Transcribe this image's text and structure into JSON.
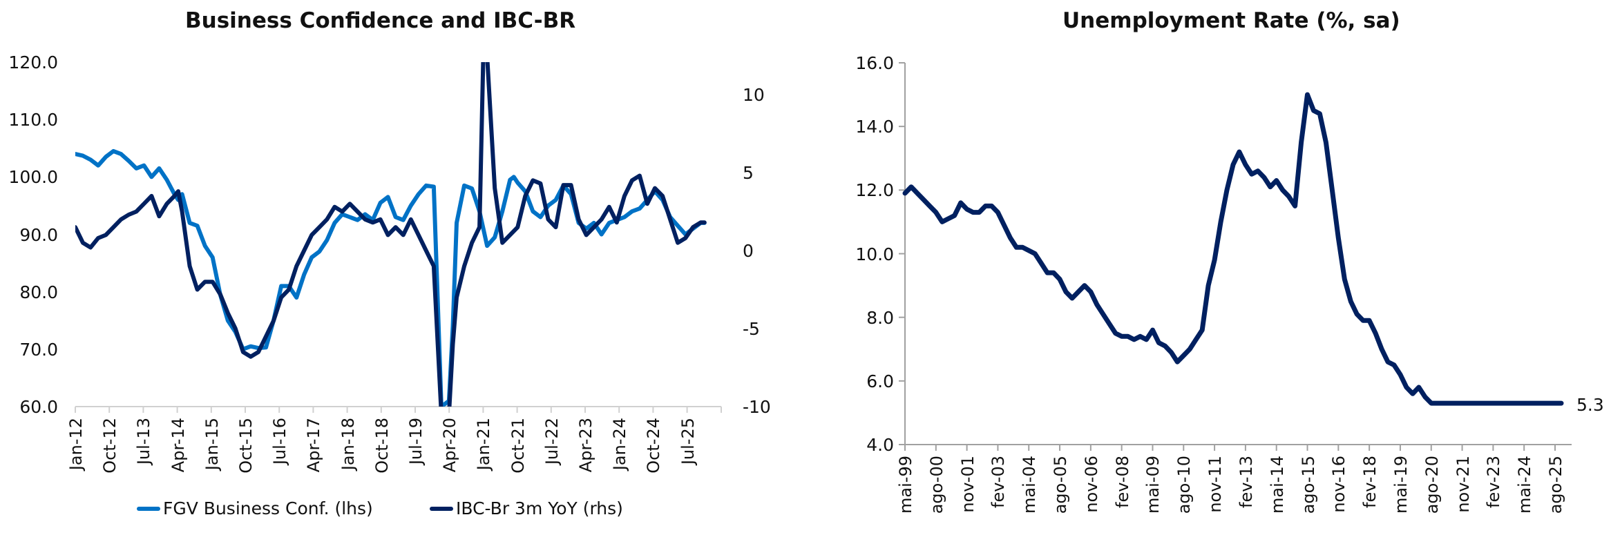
{
  "chart_data": [
    {
      "type": "line",
      "title": "Business Confidence and IBC-BR",
      "xlabel": "",
      "ylabel_left": "",
      "ylabel_right": "",
      "grid": false,
      "legend_position": "bottom",
      "y_left": {
        "range": [
          60,
          120
        ],
        "ticks": [
          "120.0",
          "110.0",
          "100.0",
          "90.0",
          "80.0",
          "70.0",
          "60.0"
        ]
      },
      "y_right": {
        "range": [
          -10,
          12
        ],
        "ticks": [
          "10",
          "5",
          "0",
          "-5",
          "-10"
        ]
      },
      "x_ticks": [
        "Jan-12",
        "Oct-12",
        "Jul-13",
        "Apr-14",
        "Jan-15",
        "Oct-15",
        "Jul-16",
        "Apr-17",
        "Jan-18",
        "Oct-18",
        "Jul-19",
        "Apr-20",
        "Jan-21",
        "Oct-21",
        "Jul-22",
        "Apr-23",
        "Jan-24",
        "Oct-24",
        "Jul-25"
      ],
      "x_range_months": {
        "start": "2012-01",
        "end": "2025-10"
      },
      "series": [
        {
          "name": "FGV Business Conf. (lhs)",
          "axis": "left",
          "color": "#0072C6",
          "x_month_index": [
            0,
            2,
            4,
            6,
            8,
            10,
            12,
            14,
            16,
            18,
            20,
            22,
            24,
            26,
            27,
            28,
            30,
            32,
            34,
            36,
            38,
            40,
            42,
            44,
            46,
            48,
            50,
            52,
            54,
            56,
            58,
            60,
            62,
            64,
            66,
            68,
            70,
            72,
            74,
            76,
            78,
            80,
            82,
            84,
            86,
            88,
            90,
            92,
            94,
            96,
            98,
            99,
            100,
            102,
            104,
            106,
            108,
            110,
            112,
            114,
            115,
            116,
            118,
            120,
            122,
            124,
            126,
            128,
            130,
            132,
            134,
            136,
            138,
            140,
            142,
            144,
            146,
            148,
            150,
            152,
            154,
            156,
            158,
            160,
            162,
            164,
            165
          ],
          "values": [
            104,
            103.7,
            103,
            102,
            103.5,
            104.5,
            104,
            102.8,
            101.5,
            102,
            100,
            101.5,
            99.5,
            97,
            96,
            97,
            92,
            91.5,
            88,
            86,
            79.5,
            75,
            73,
            70,
            70.5,
            70.2,
            70.3,
            75,
            81,
            81,
            79,
            83,
            86,
            87,
            89,
            92,
            93.5,
            93,
            92.5,
            93.5,
            92.5,
            95.5,
            96.5,
            93,
            92.5,
            95,
            97,
            98.5,
            98.3,
            60,
            61,
            74,
            92,
            98.5,
            98,
            94,
            88,
            89.5,
            94,
            99.5,
            100,
            99,
            97.5,
            94,
            93,
            95,
            96,
            98.5,
            97,
            92,
            91,
            92,
            90,
            92,
            92.5,
            93,
            94,
            94.5,
            96,
            97.5,
            96,
            93,
            91.5,
            90,
            91,
            92,
            92
          ]
        },
        {
          "name": "IBC-Br 3m YoY (rhs)",
          "axis": "right",
          "color": "#002060",
          "x_month_index": [
            0,
            2,
            4,
            6,
            8,
            10,
            12,
            14,
            16,
            18,
            20,
            22,
            24,
            26,
            27,
            28,
            30,
            32,
            34,
            36,
            38,
            40,
            42,
            44,
            46,
            48,
            50,
            52,
            54,
            56,
            58,
            60,
            62,
            64,
            66,
            68,
            70,
            72,
            74,
            76,
            78,
            80,
            82,
            84,
            86,
            88,
            90,
            92,
            94,
            96,
            98,
            99,
            100,
            102,
            104,
            106,
            107,
            108,
            110,
            112,
            114,
            116,
            118,
            120,
            122,
            124,
            126,
            128,
            130,
            132,
            134,
            136,
            138,
            140,
            142,
            144,
            146,
            148,
            150,
            152,
            154,
            156,
            158,
            160,
            162,
            164,
            165
          ],
          "values": [
            1.5,
            0.5,
            0.2,
            0.8,
            1.0,
            1.5,
            2.0,
            2.3,
            2.5,
            3.0,
            3.5,
            2.2,
            3.0,
            3.5,
            3.8,
            2.5,
            -1.0,
            -2.5,
            -2.0,
            -2.0,
            -2.8,
            -4.0,
            -5.0,
            -6.5,
            -6.8,
            -6.5,
            -5.5,
            -4.5,
            -3.0,
            -2.5,
            -1.0,
            0.0,
            1.0,
            1.5,
            2.0,
            2.8,
            2.5,
            3.0,
            2.5,
            2.0,
            1.8,
            2.0,
            1.0,
            1.5,
            1.0,
            2.0,
            1.0,
            0.0,
            -1.0,
            -10.5,
            -10.5,
            -6.0,
            -3.0,
            -1.0,
            0.5,
            1.5,
            12.5,
            12.5,
            4.0,
            0.5,
            1.0,
            1.5,
            3.5,
            4.5,
            4.3,
            2.0,
            1.5,
            4.2,
            4.2,
            2.0,
            1.0,
            1.5,
            2.0,
            2.8,
            1.8,
            3.5,
            4.5,
            4.8,
            3.0,
            4.0,
            3.5,
            2.0,
            0.5,
            0.8,
            1.5,
            1.8,
            1.8
          ]
        }
      ]
    },
    {
      "type": "line",
      "title": "Unemployment Rate (%, sa)",
      "xlabel": "",
      "ylabel": "",
      "grid": false,
      "ylim": [
        4.0,
        16.0
      ],
      "y_ticks": [
        "16.0",
        "14.0",
        "12.0",
        "10.0",
        "8.0",
        "6.0",
        "4.0"
      ],
      "x_ticks": [
        "mai-99",
        "ago-00",
        "nov-01",
        "fev-03",
        "mai-04",
        "ago-05",
        "nov-06",
        "fev-08",
        "mai-09",
        "ago-10",
        "nov-11",
        "fev-13",
        "mai-14",
        "ago-15",
        "nov-16",
        "fev-18",
        "mai-19",
        "ago-20",
        "nov-21",
        "fev-23",
        "mai-24",
        "ago-25"
      ],
      "x_range_months": {
        "start": "1999-05",
        "end": "2025-11"
      },
      "end_label": "5.3",
      "series": [
        {
          "name": "Unemployment Rate (%, sa)",
          "color": "#002060",
          "x_month_index": [
            0,
            3,
            6,
            9,
            12,
            15,
            18,
            21,
            24,
            27,
            30,
            33,
            36,
            39,
            42,
            45,
            48,
            51,
            54,
            57,
            60,
            63,
            66,
            69,
            72,
            75,
            78,
            81,
            84,
            87,
            90,
            93,
            96,
            99,
            102,
            105,
            108,
            111,
            114,
            117,
            120,
            123,
            126,
            129,
            132,
            135,
            138,
            141,
            144,
            147,
            150,
            153,
            156,
            159,
            162,
            165,
            168,
            171,
            174,
            177,
            180,
            183,
            186,
            189,
            192,
            195,
            198,
            201,
            204,
            207,
            210,
            213,
            216,
            219,
            222,
            225,
            228,
            231,
            234,
            237,
            240,
            243,
            246,
            249,
            252,
            255,
            258,
            261,
            264,
            267,
            270,
            273,
            276,
            279,
            282,
            285,
            288,
            291,
            294,
            297,
            300,
            303,
            306,
            309,
            312,
            315,
            318,
            319
          ],
          "values": [
            11.9,
            12.1,
            11.9,
            11.7,
            11.5,
            11.3,
            11.0,
            11.1,
            11.2,
            11.6,
            11.4,
            11.3,
            11.3,
            11.5,
            11.5,
            11.3,
            10.9,
            10.5,
            10.2,
            10.2,
            10.1,
            10.0,
            9.7,
            9.4,
            9.4,
            9.2,
            8.8,
            8.6,
            8.8,
            9.0,
            8.8,
            8.4,
            8.1,
            7.8,
            7.5,
            7.4,
            7.4,
            7.3,
            7.4,
            7.3,
            7.6,
            7.2,
            7.1,
            6.9,
            6.6,
            6.8,
            7.0,
            7.3,
            7.6,
            9.0,
            9.8,
            11.0,
            12.0,
            12.8,
            13.2,
            12.8,
            12.5,
            12.6,
            12.4,
            12.1,
            12.3,
            12.0,
            11.8,
            11.5,
            13.5,
            15.0,
            14.5,
            14.4,
            13.5,
            12.0,
            10.5,
            9.2,
            8.5,
            8.1,
            7.9,
            7.9,
            7.5,
            7.0,
            6.6,
            6.5,
            6.2,
            5.8,
            5.6,
            5.8,
            5.5,
            5.3,
            5.3,
            5.3,
            5.3,
            5.3,
            5.3,
            5.3,
            5.3,
            5.3,
            5.3,
            5.3,
            5.3,
            5.3,
            5.3,
            5.3,
            5.3,
            5.3,
            5.3,
            5.3,
            5.3,
            5.3,
            5.3,
            5.3
          ]
        }
      ]
    }
  ]
}
